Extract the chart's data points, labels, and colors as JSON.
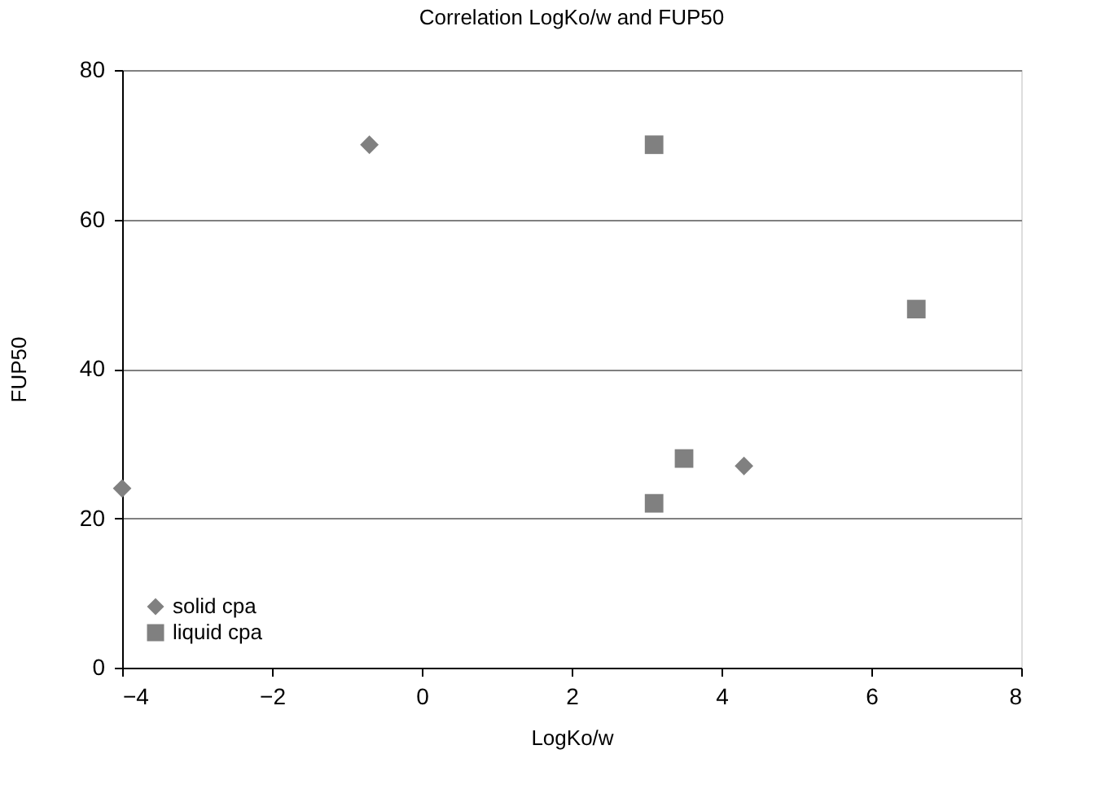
{
  "chart_data": {
    "type": "scatter",
    "title": "Correlation LogKo/w and FUP50",
    "xlabel": "LogKo/w",
    "ylabel": "FUP50",
    "series": [
      {
        "name": "solid cpa",
        "color": "#808080",
        "marker": "diamond",
        "x": [
          -4,
          -0.7,
          4.3
        ],
        "values": [
          24,
          70,
          27
        ]
      },
      {
        "name": "liquid cpa",
        "color": "#808080",
        "marker": "square",
        "x": [
          3.1,
          6.6,
          3.5,
          3.1
        ],
        "values": [
          70,
          48,
          28,
          22
        ]
      }
    ],
    "xlim": [
      -4,
      8
    ],
    "xticks": [
      -4,
      -2,
      0,
      2,
      4,
      6,
      8
    ],
    "ylim": [
      0,
      80
    ],
    "yticks": [
      0,
      20,
      40,
      60,
      80
    ],
    "grid": "y",
    "legend": "bottom left"
  }
}
